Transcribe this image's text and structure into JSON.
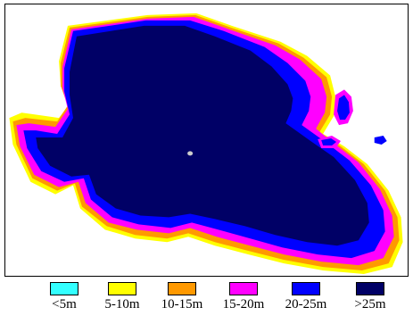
{
  "legend": {
    "items": [
      {
        "label": "<5m",
        "color": "#33ffff"
      },
      {
        "label": "5-10m",
        "color": "#ffff00"
      },
      {
        "label": "10-15m",
        "color": "#ff9900"
      },
      {
        "label": "15-20m",
        "color": "#ff00ff"
      },
      {
        "label": "20-25m",
        "color": "#0000ff"
      },
      {
        "label": ">25m",
        "color": "#000066"
      }
    ]
  }
}
